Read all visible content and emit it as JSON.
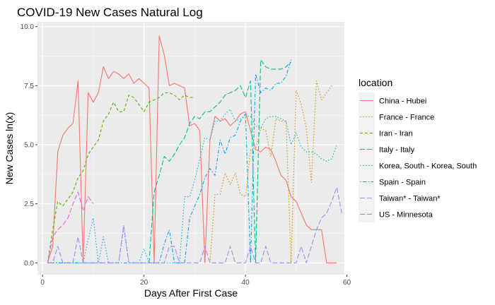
{
  "chart_data": {
    "type": "line",
    "title": "COVID-19 New Cases Natural Log",
    "xlabel": "Days After First Case",
    "ylabel": "New Cases ln(x)",
    "xlim": [
      -1,
      59.5
    ],
    "ylim": [
      -0.5,
      10.2
    ],
    "xticks": [
      0,
      20,
      40,
      60
    ],
    "yticks": [
      0.0,
      2.5,
      5.0,
      7.5,
      10.0
    ],
    "xtick_labels": [
      "0",
      "20",
      "40",
      "60"
    ],
    "ytick_labels": [
      "0.0",
      "2.5",
      "5.0",
      "7.5",
      "10.0"
    ],
    "grid": true,
    "legend": {
      "title": "location",
      "position": "right"
    },
    "series": [
      {
        "name": "China - Hubei",
        "color": "#F8766D",
        "dash": "solid",
        "points": [
          [
            1,
            0
          ],
          [
            2,
            0.7
          ],
          [
            3,
            4.7
          ],
          [
            4,
            5.4
          ],
          [
            5,
            5.7
          ],
          [
            6,
            5.9
          ],
          [
            7,
            7.7
          ],
          [
            8,
            0
          ],
          [
            9,
            7.2
          ],
          [
            10,
            6.8
          ],
          [
            11,
            7.2
          ],
          [
            12,
            8.3
          ],
          [
            13,
            7.8
          ],
          [
            14,
            8.1
          ],
          [
            15,
            8.0
          ],
          [
            16,
            7.8
          ],
          [
            17,
            8.0
          ],
          [
            18,
            7.6
          ],
          [
            19,
            7.8
          ],
          [
            20,
            7.6
          ],
          [
            21,
            7.4
          ],
          [
            22,
            0
          ],
          [
            23,
            9.6
          ],
          [
            24,
            8.8
          ],
          [
            25,
            7.5
          ],
          [
            26,
            7.6
          ],
          [
            27,
            7.5
          ],
          [
            28,
            7.4
          ],
          [
            29,
            5.8
          ],
          [
            30,
            5.9
          ],
          [
            31,
            5.6
          ],
          [
            32,
            0
          ],
          [
            33,
            5.2
          ],
          [
            34,
            6.2
          ],
          [
            35,
            6.0
          ],
          [
            36,
            6.1
          ],
          [
            37,
            5.8
          ],
          [
            38,
            6.0
          ],
          [
            39,
            6.3
          ],
          [
            40,
            6.4
          ],
          [
            41,
            5.6
          ],
          [
            42,
            4.8
          ],
          [
            43,
            4.7
          ],
          [
            44,
            4.9
          ],
          [
            45,
            4.8
          ],
          [
            46,
            4.3
          ],
          [
            47,
            3.7
          ],
          [
            48,
            3.5
          ],
          [
            49,
            2.8
          ],
          [
            50,
            2.6
          ],
          [
            51,
            2.1
          ],
          [
            52,
            1.6
          ],
          [
            53,
            1.4
          ],
          [
            54,
            1.4
          ],
          [
            55,
            1.4
          ],
          [
            56,
            0
          ],
          [
            57,
            0
          ],
          [
            58,
            0
          ]
        ]
      },
      {
        "name": "France - France",
        "color": "#C49A00",
        "dash": "dotted",
        "points": [
          [
            33,
            0
          ],
          [
            34,
            2.9
          ],
          [
            35,
            2.9
          ],
          [
            36,
            3.8
          ],
          [
            37,
            3.3
          ],
          [
            38,
            3.8
          ],
          [
            39,
            2.9
          ],
          [
            40,
            2.8
          ],
          [
            41,
            4.8
          ],
          [
            42,
            4.8
          ],
          [
            43,
            5.7
          ],
          [
            44,
            5.6
          ],
          [
            45,
            4.5
          ],
          [
            46,
            6.1
          ],
          [
            47,
            6.0
          ],
          [
            48,
            6.0
          ],
          [
            49,
            0
          ],
          [
            50,
            7.3
          ],
          [
            51,
            6.7
          ],
          [
            52,
            5.7
          ],
          [
            53,
            3.4
          ],
          [
            54,
            7.7
          ],
          [
            55,
            6.9
          ],
          [
            56,
            7.2
          ],
          [
            57,
            7.5
          ]
        ]
      },
      {
        "name": "Iran - Iran",
        "color": "#53B400",
        "dash": "dashed",
        "points": [
          [
            1,
            0
          ],
          [
            2,
            1.4
          ],
          [
            3,
            2.6
          ],
          [
            4,
            2.4
          ],
          [
            5,
            2.7
          ],
          [
            6,
            3.0
          ],
          [
            7,
            3.6
          ],
          [
            8,
            3.9
          ],
          [
            9,
            4.6
          ],
          [
            10,
            4.9
          ],
          [
            11,
            5.2
          ],
          [
            12,
            6.0
          ],
          [
            13,
            6.3
          ],
          [
            14,
            6.8
          ],
          [
            15,
            6.4
          ],
          [
            16,
            6.4
          ],
          [
            17,
            7.1
          ],
          [
            18,
            7.0
          ],
          [
            19,
            6.7
          ],
          [
            20,
            6.4
          ],
          [
            21,
            6.8
          ],
          [
            22,
            6.9
          ],
          [
            23,
            7.0
          ],
          [
            24,
            7.2
          ],
          [
            25,
            7.2
          ],
          [
            26,
            7.1
          ],
          [
            27,
            6.9
          ],
          [
            28,
            7.1
          ],
          [
            29,
            7.0
          ],
          [
            30,
            7.0
          ]
        ]
      },
      {
        "name": "Italy - Italy",
        "color": "#00C094",
        "dash": "longdash",
        "points": [
          [
            21,
            0
          ],
          [
            22,
            3.0
          ],
          [
            23,
            3.7
          ],
          [
            24,
            4.5
          ],
          [
            25,
            4.3
          ],
          [
            26,
            4.6
          ],
          [
            27,
            5.0
          ],
          [
            28,
            5.3
          ],
          [
            29,
            5.9
          ],
          [
            30,
            6.2
          ],
          [
            31,
            6.1
          ],
          [
            32,
            6.4
          ],
          [
            33,
            6.4
          ],
          [
            34,
            6.6
          ],
          [
            35,
            6.8
          ],
          [
            36,
            7.1
          ],
          [
            37,
            7.2
          ],
          [
            38,
            7.3
          ],
          [
            39,
            7.5
          ],
          [
            40,
            7.0
          ],
          [
            41,
            7.7
          ],
          [
            42,
            0
          ],
          [
            43,
            8.6
          ],
          [
            44,
            8.3
          ],
          [
            45,
            8.2
          ],
          [
            46,
            8.2
          ],
          [
            47,
            8.2
          ],
          [
            48,
            8.3
          ],
          [
            49,
            8.5
          ]
        ]
      },
      {
        "name": "Korea, South - Korea, South",
        "color": "#00B6EB",
        "dash": "dotted",
        "points": [
          [
            1,
            0
          ],
          [
            8,
            0
          ],
          [
            9,
            1.0
          ],
          [
            10,
            1.9
          ],
          [
            11,
            0
          ],
          [
            12,
            1.1
          ],
          [
            13,
            0
          ],
          [
            14,
            0
          ],
          [
            15,
            0
          ],
          [
            16,
            1.5
          ],
          [
            17,
            0
          ],
          [
            18,
            0
          ],
          [
            19,
            0
          ],
          [
            20,
            0.6
          ],
          [
            21,
            0
          ],
          [
            22,
            0
          ],
          [
            23,
            0
          ],
          [
            24,
            0
          ],
          [
            25,
            0
          ],
          [
            26,
            0
          ],
          [
            27,
            0
          ],
          [
            28,
            2.8
          ],
          [
            29,
            2.8
          ],
          [
            30,
            3.5
          ],
          [
            31,
            4.4
          ],
          [
            32,
            5.3
          ],
          [
            33,
            5.2
          ],
          [
            34,
            6.0
          ],
          [
            35,
            6.0
          ],
          [
            36,
            6.3
          ],
          [
            37,
            6.5
          ],
          [
            38,
            6.0
          ],
          [
            39,
            6.1
          ],
          [
            40,
            6.2
          ],
          [
            41,
            6.2
          ],
          [
            42,
            5.8
          ],
          [
            43,
            5.7
          ],
          [
            44,
            6.1
          ],
          [
            45,
            6.2
          ],
          [
            46,
            6.2
          ],
          [
            47,
            6.1
          ],
          [
            48,
            6.0
          ],
          [
            49,
            5.0
          ],
          [
            50,
            5.5
          ],
          [
            51,
            4.9
          ],
          [
            52,
            4.7
          ],
          [
            53,
            4.7
          ],
          [
            54,
            4.6
          ],
          [
            55,
            4.4
          ],
          [
            56,
            4.3
          ],
          [
            57,
            4.4
          ],
          [
            58,
            5.0
          ]
        ]
      },
      {
        "name": "Spain - Spain",
        "color": "#06A4FF",
        "dash": "dotdash",
        "points": [
          [
            1,
            0
          ],
          [
            22,
            0
          ],
          [
            23,
            0
          ],
          [
            24,
            0.8
          ],
          [
            25,
            1.4
          ],
          [
            26,
            0
          ],
          [
            27,
            0
          ],
          [
            28,
            0
          ],
          [
            29,
            1.9
          ],
          [
            30,
            2.4
          ],
          [
            31,
            2.9
          ],
          [
            32,
            3.6
          ],
          [
            33,
            4.0
          ],
          [
            34,
            3.7
          ],
          [
            35,
            5.2
          ],
          [
            36,
            4.6
          ],
          [
            37,
            5.3
          ],
          [
            38,
            5.4
          ],
          [
            39,
            6.0
          ],
          [
            40,
            6.3
          ],
          [
            41,
            0
          ],
          [
            42,
            8.0
          ],
          [
            43,
            7.2
          ],
          [
            44,
            7.4
          ],
          [
            45,
            7.3
          ],
          [
            46,
            7.6
          ],
          [
            47,
            7.6
          ],
          [
            48,
            7.9
          ],
          [
            49,
            8.6
          ]
        ]
      },
      {
        "name": "Taiwan* - Taiwan*",
        "color": "#A58AFF",
        "dash": "longdash",
        "points": [
          [
            1,
            0
          ],
          [
            2,
            0
          ],
          [
            3,
            0.7
          ],
          [
            4,
            0
          ],
          [
            5,
            0
          ],
          [
            6,
            0
          ],
          [
            7,
            1.1
          ],
          [
            8,
            0
          ],
          [
            9,
            0
          ],
          [
            10,
            0
          ],
          [
            11,
            0
          ],
          [
            12,
            0
          ],
          [
            13,
            0
          ],
          [
            14,
            0
          ],
          [
            15,
            0
          ],
          [
            16,
            1.6
          ],
          [
            17,
            0
          ],
          [
            18,
            0
          ],
          [
            19,
            0
          ],
          [
            20,
            0
          ],
          [
            21,
            0
          ],
          [
            22,
            0
          ],
          [
            23,
            0
          ],
          [
            24,
            0
          ],
          [
            25,
            0.7
          ],
          [
            26,
            0.7
          ],
          [
            27,
            0
          ],
          [
            28,
            0
          ],
          [
            29,
            0
          ],
          [
            30,
            0
          ],
          [
            31,
            0
          ],
          [
            32,
            0.7
          ],
          [
            33,
            0
          ],
          [
            34,
            0
          ],
          [
            35,
            0
          ],
          [
            36,
            0
          ],
          [
            37,
            0.7
          ],
          [
            38,
            0
          ],
          [
            39,
            0
          ],
          [
            40,
            0
          ],
          [
            41,
            0.7
          ],
          [
            42,
            0
          ],
          [
            43,
            0
          ],
          [
            44,
            0.7
          ],
          [
            45,
            0
          ],
          [
            46,
            0
          ],
          [
            47,
            0
          ],
          [
            48,
            0
          ],
          [
            49,
            0
          ],
          [
            50,
            0
          ],
          [
            51,
            0.7
          ],
          [
            52,
            0
          ],
          [
            53,
            0.7
          ],
          [
            54,
            1.4
          ],
          [
            55,
            1.9
          ],
          [
            56,
            2.1
          ],
          [
            57,
            2.6
          ],
          [
            58,
            3.2
          ],
          [
            59,
            2.1
          ]
        ]
      },
      {
        "name": "US - Minnesota",
        "color": "#FB61D7",
        "dash": "longdash",
        "points": [
          [
            1,
            0
          ],
          [
            2,
            1.1
          ],
          [
            3,
            1.4
          ],
          [
            4,
            1.6
          ],
          [
            5,
            1.9
          ],
          [
            6,
            2.5
          ],
          [
            7,
            3.0
          ],
          [
            8,
            2.2
          ],
          [
            9,
            2.8
          ],
          [
            10,
            2.5
          ]
        ]
      }
    ]
  }
}
